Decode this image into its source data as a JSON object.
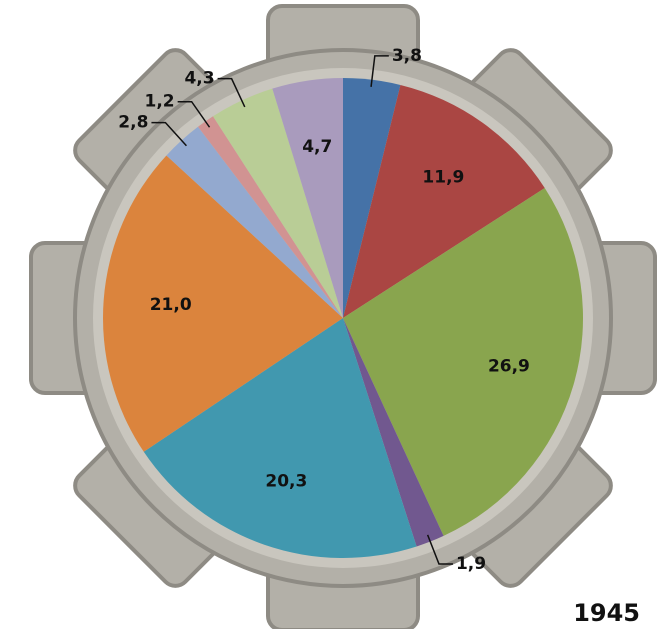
{
  "chart_data": {
    "type": "pie",
    "annotation": "1945",
    "values": [
      3.8,
      11.9,
      26.9,
      1.9,
      20.3,
      21.0,
      2.8,
      1.2,
      4.3,
      4.7
    ],
    "value_labels": [
      "3,8",
      "11,9",
      "26,9",
      "1,9",
      "20,3",
      "21,0",
      "2,8",
      "1,2",
      "4,3",
      "4,7"
    ],
    "colors": [
      "#4572a7",
      "#aa4643",
      "#89a54e",
      "#71588f",
      "#4198af",
      "#db843d",
      "#93a9cf",
      "#d19392",
      "#b9cd96",
      "#a99bbd"
    ]
  }
}
